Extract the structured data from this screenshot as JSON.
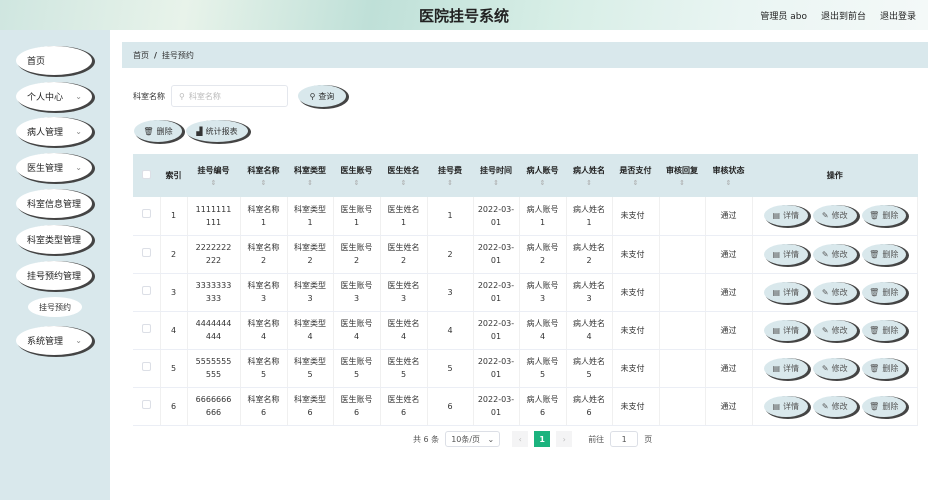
{
  "header": {
    "title": "医院挂号系统",
    "user": "管理员 abo",
    "to_front": "退出到前台",
    "logout": "退出登录"
  },
  "sidebar": {
    "items": [
      {
        "label": "首页",
        "has_children": false
      },
      {
        "label": "个人中心",
        "has_children": true
      },
      {
        "label": "病人管理",
        "has_children": true
      },
      {
        "label": "医生管理",
        "has_children": true
      },
      {
        "label": "科室信息管理",
        "has_children": false
      },
      {
        "label": "科室类型管理",
        "has_children": false
      },
      {
        "label": "挂号预约管理",
        "has_children": false
      }
    ],
    "sub_item": "挂号预约",
    "last_item": "系统管理"
  },
  "breadcrumb": {
    "home": "首页",
    "sep": "/",
    "current": "挂号预约"
  },
  "search": {
    "label": "科室名称",
    "placeholder": "科室名称",
    "button": "查询"
  },
  "actions": {
    "delete": "删除",
    "report": "统计报表"
  },
  "table": {
    "columns": [
      "索引",
      "挂号编号",
      "科室名称",
      "科室类型",
      "医生账号",
      "医生姓名",
      "挂号费",
      "挂号时间",
      "病人账号",
      "病人姓名",
      "是否支付",
      "审核回复",
      "审核状态",
      "操作"
    ],
    "sortable": [
      false,
      true,
      true,
      true,
      true,
      true,
      true,
      true,
      true,
      true,
      true,
      true,
      true,
      false
    ],
    "rows": [
      [
        "1",
        "1111111111",
        "科室名称1",
        "科室类型1",
        "医生账号1",
        "医生姓名1",
        "1",
        "2022-03-01",
        "病人账号1",
        "病人姓名1",
        "未支付",
        "",
        "通过"
      ],
      [
        "2",
        "2222222222",
        "科室名称2",
        "科室类型2",
        "医生账号2",
        "医生姓名2",
        "2",
        "2022-03-01",
        "病人账号2",
        "病人姓名2",
        "未支付",
        "",
        "通过"
      ],
      [
        "3",
        "3333333333",
        "科室名称3",
        "科室类型3",
        "医生账号3",
        "医生姓名3",
        "3",
        "2022-03-01",
        "病人账号3",
        "病人姓名3",
        "未支付",
        "",
        "通过"
      ],
      [
        "4",
        "4444444444",
        "科室名称4",
        "科室类型4",
        "医生账号4",
        "医生姓名4",
        "4",
        "2022-03-01",
        "病人账号4",
        "病人姓名4",
        "未支付",
        "",
        "通过"
      ],
      [
        "5",
        "5555555555",
        "科室名称5",
        "科室类型5",
        "医生账号5",
        "医生姓名5",
        "5",
        "2022-03-01",
        "病人账号5",
        "病人姓名5",
        "未支付",
        "",
        "通过"
      ],
      [
        "6",
        "6666666666",
        "科室名称6",
        "科室类型6",
        "医生账号6",
        "医生姓名6",
        "6",
        "2022-03-01",
        "病人账号6",
        "病人姓名6",
        "未支付",
        "",
        "通过"
      ]
    ],
    "row_actions": {
      "detail": "详情",
      "edit": "修改",
      "delete": "删除"
    }
  },
  "pagination": {
    "total": "共 6 条",
    "page_size": "10条/页",
    "current_page": "1",
    "goto_label": "前往",
    "goto_value": "1",
    "page_suffix": "页"
  },
  "colors": {
    "accent": "#1bb37e",
    "panel": "#d9e8ec"
  }
}
